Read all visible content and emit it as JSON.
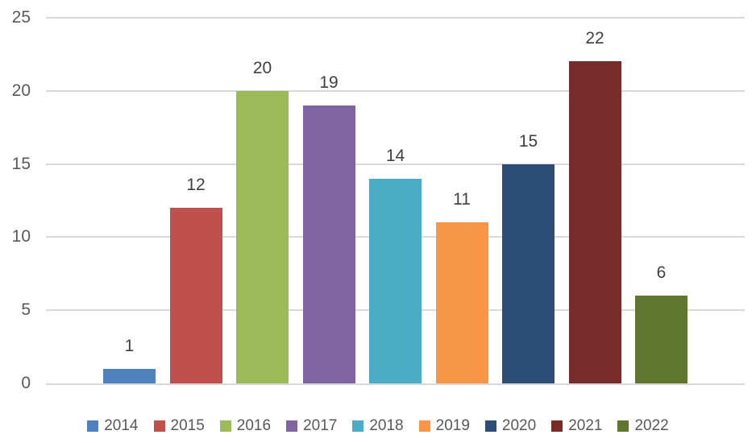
{
  "chart_data": {
    "type": "bar",
    "title": "",
    "xlabel": "",
    "ylabel": "",
    "categories": [
      "2014",
      "2015",
      "2016",
      "2017",
      "2018",
      "2019",
      "2020",
      "2021",
      "2022"
    ],
    "values": [
      1,
      12,
      20,
      19,
      14,
      11,
      15,
      22,
      6
    ],
    "series_colors": [
      "#4F81BD",
      "#C0504D",
      "#9BBB59",
      "#8064A2",
      "#4BACC6",
      "#F79646",
      "#2C4D75",
      "#772C2A",
      "#5F7530"
    ],
    "ylim": [
      0,
      25
    ],
    "yticks": [
      0,
      5,
      10,
      15,
      20,
      25
    ],
    "grid": true,
    "vertical_gridlines": false,
    "data_labels_shown": true,
    "legend_position": "bottom",
    "style": {
      "background": "#FFFFFF",
      "gridline_color": "#D9D9D9",
      "axis_line_color": "#D9D9D9",
      "tick_label_color": "#595959",
      "data_label_color": "#404040",
      "legend_label_color": "#595959"
    }
  }
}
